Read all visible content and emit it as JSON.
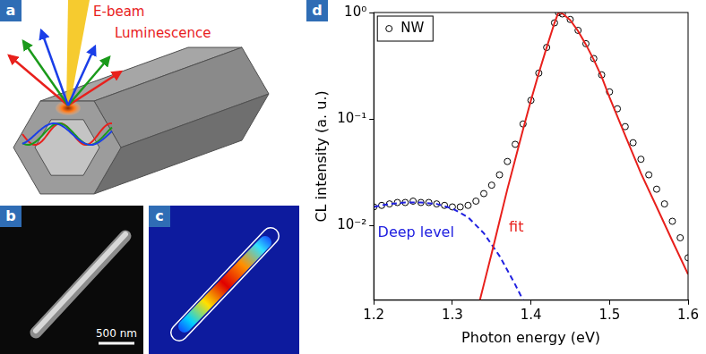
{
  "panels": [
    {
      "letter": "a",
      "beam_label": "E-beam",
      "emission_label": "Luminescence"
    },
    {
      "letter": "b",
      "scale_bar": "500 nm"
    },
    {
      "letter": "c"
    },
    {
      "letter": "d"
    }
  ],
  "chart_data": {
    "type": "scatter",
    "x_label": "Photon energy (eV)",
    "y_label": "CL intensity (a. u.)",
    "log": "y",
    "grid": false,
    "legend": "upper left",
    "xlim": [
      1.2,
      1.6
    ],
    "xticks": [
      1.2,
      1.3,
      1.4,
      1.5,
      1.6
    ],
    "ylim": [
      0.002,
      1
    ],
    "yticks": [
      {
        "value": 0.01,
        "label": "10⁻²"
      },
      {
        "value": 0.1,
        "label": "10⁻¹"
      },
      {
        "value": 1,
        "label": "10⁰"
      }
    ],
    "series": [
      {
        "name": "NW",
        "type": "scatter",
        "marker": "open circle",
        "color": "#000000",
        "x": [
          1.2,
          1.21,
          1.22,
          1.23,
          1.24,
          1.25,
          1.26,
          1.27,
          1.28,
          1.29,
          1.3,
          1.31,
          1.32,
          1.33,
          1.34,
          1.35,
          1.36,
          1.37,
          1.38,
          1.39,
          1.4,
          1.41,
          1.42,
          1.43,
          1.435,
          1.44,
          1.45,
          1.46,
          1.47,
          1.48,
          1.49,
          1.5,
          1.51,
          1.52,
          1.53,
          1.54,
          1.55,
          1.56,
          1.57,
          1.58,
          1.59,
          1.6
        ],
        "values": [
          0.015,
          0.0155,
          0.016,
          0.0165,
          0.0165,
          0.017,
          0.0165,
          0.0165,
          0.016,
          0.0155,
          0.015,
          0.015,
          0.0155,
          0.017,
          0.02,
          0.024,
          0.03,
          0.04,
          0.058,
          0.09,
          0.15,
          0.27,
          0.47,
          0.8,
          1.0,
          0.97,
          0.86,
          0.68,
          0.51,
          0.37,
          0.26,
          0.18,
          0.125,
          0.085,
          0.06,
          0.042,
          0.03,
          0.022,
          0.016,
          0.011,
          0.0077,
          0.005
        ]
      },
      {
        "type": "line",
        "line_style": "solid",
        "color": "#e8201c",
        "x": [
          1.335,
          1.34,
          1.35,
          1.36,
          1.37,
          1.38,
          1.39,
          1.4,
          1.41,
          1.42,
          1.43,
          1.435,
          1.44,
          1.45,
          1.46,
          1.47,
          1.48,
          1.49,
          1.5,
          1.52,
          1.54,
          1.56,
          1.58,
          1.6
        ],
        "values": [
          0.002,
          0.0028,
          0.0055,
          0.011,
          0.022,
          0.042,
          0.08,
          0.15,
          0.27,
          0.47,
          0.8,
          1.0,
          0.98,
          0.85,
          0.67,
          0.5,
          0.36,
          0.25,
          0.16,
          0.07,
          0.031,
          0.015,
          0.0072,
          0.0035
        ]
      },
      {
        "type": "line",
        "line_style": "dashed",
        "color": "#2020e0",
        "x": [
          1.2,
          1.22,
          1.24,
          1.26,
          1.28,
          1.3,
          1.32,
          1.34,
          1.36,
          1.38,
          1.39
        ],
        "values": [
          0.015,
          0.016,
          0.0165,
          0.0165,
          0.016,
          0.0145,
          0.012,
          0.0085,
          0.0052,
          0.0028,
          0.002
        ]
      }
    ],
    "annotations": [
      {
        "text": "fit",
        "x": 1.372,
        "y": 0.0095,
        "color": "#e8201c"
      },
      {
        "text": "Deep level",
        "x": 1.205,
        "y": 0.0085,
        "color": "#2020e0"
      }
    ]
  }
}
